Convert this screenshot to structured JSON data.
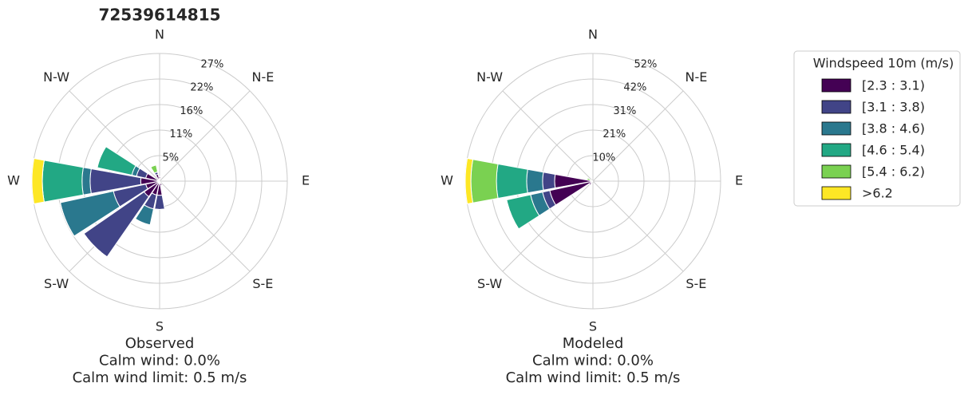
{
  "chart_data": [
    {
      "type": "windrose",
      "title": "72539614815",
      "xlabel": [
        "Observed",
        "Calm wind: 0.0%",
        "Calm wind limit: 0.5 m/s"
      ],
      "categories": [
        "N",
        null,
        "N-E",
        null,
        "E",
        null,
        "S-E",
        null,
        "S",
        null,
        "S-W",
        null,
        "W",
        null,
        "N-W",
        null
      ],
      "ylim": [
        0,
        27
      ],
      "yticks": [
        {
          "value": 5.4,
          "label": "5%"
        },
        {
          "value": 10.8,
          "label": "11%"
        },
        {
          "value": 16.2,
          "label": "16%"
        },
        {
          "value": 21.6,
          "label": "22%"
        },
        {
          "value": 27,
          "label": "27%"
        }
      ],
      "legend_title": "Windspeed 10m (m/s)",
      "series": [
        {
          "name": "[2.3 : 3.1)",
          "color": "#440154",
          "values": [
            1,
            0,
            0,
            0,
            0,
            0,
            0,
            1,
            3,
            3,
            4,
            3,
            4,
            3,
            0,
            1.5
          ]
        },
        {
          "name": "[3.1 : 3.8)",
          "color": "#414487",
          "values": [
            0,
            0,
            0,
            0,
            0,
            0,
            0,
            0,
            3,
            3,
            15.5,
            7,
            10.7,
            2,
            0,
            0.5
          ]
        },
        {
          "name": "[3.8 : 4.6)",
          "color": "#2a788e",
          "values": [
            0,
            0,
            0,
            0,
            0,
            0,
            0,
            0,
            0,
            3.5,
            0,
            11.5,
            1.7,
            1,
            0,
            0
          ]
        },
        {
          "name": "[4.6 : 5.4)",
          "color": "#22a884",
          "values": [
            0,
            0,
            0,
            0,
            0,
            0,
            0,
            0,
            0,
            0,
            0,
            0,
            8.4,
            7.5,
            0,
            0
          ]
        },
        {
          "name": "[5.4 : 6.2)",
          "color": "#7ad151",
          "values": [
            0,
            0,
            0,
            0,
            0,
            0,
            0,
            0,
            0,
            0,
            0,
            0,
            0,
            0,
            0,
            1.5
          ]
        },
        {
          "name": ">6.2",
          "color": "#fde725",
          "values": [
            0,
            0,
            0,
            0,
            0,
            0,
            0,
            0,
            0,
            0,
            0,
            0,
            2.2,
            0,
            0,
            0
          ]
        }
      ]
    },
    {
      "type": "windrose",
      "xlabel": [
        "Modeled",
        "Calm wind: 0.0%",
        "Calm wind limit: 0.5 m/s"
      ],
      "categories": [
        "N",
        null,
        "N-E",
        null,
        "E",
        null,
        "S-E",
        null,
        "S",
        null,
        "S-W",
        null,
        "W",
        null,
        "N-W",
        null
      ],
      "ylim": [
        0,
        52
      ],
      "yticks": [
        {
          "value": 10.4,
          "label": "10%"
        },
        {
          "value": 20.8,
          "label": "21%"
        },
        {
          "value": 31.2,
          "label": "31%"
        },
        {
          "value": 41.6,
          "label": "42%"
        },
        {
          "value": 52,
          "label": "52%"
        }
      ],
      "series": [
        {
          "color": "#440154",
          "values": [
            0,
            0,
            0,
            0,
            0,
            0,
            0,
            0,
            0,
            0,
            2,
            18,
            15.6,
            1,
            0,
            0
          ]
        },
        {
          "color": "#414487",
          "values": [
            0,
            0,
            0,
            0,
            0,
            0,
            0,
            0,
            0,
            0,
            0,
            3,
            4.9,
            0,
            0,
            0
          ]
        },
        {
          "color": "#2a788e",
          "values": [
            0,
            0,
            0,
            0,
            0,
            0,
            0,
            0,
            0,
            0,
            0,
            5,
            6.5,
            0,
            0,
            0
          ]
        },
        {
          "color": "#22a884",
          "values": [
            0,
            0,
            0,
            0,
            0,
            0,
            0,
            0,
            0,
            0,
            0,
            10,
            12.3,
            0,
            0,
            0
          ]
        },
        {
          "color": "#7ad151",
          "values": [
            0,
            0,
            0,
            0,
            0,
            0,
            0,
            0,
            0,
            0,
            0,
            0,
            10.4,
            1.5,
            0,
            0
          ]
        },
        {
          "color": "#fde725",
          "values": [
            0,
            0,
            0,
            0,
            0,
            0,
            0,
            0,
            0,
            0,
            0,
            0,
            2.3,
            0,
            0,
            0
          ]
        }
      ]
    }
  ]
}
